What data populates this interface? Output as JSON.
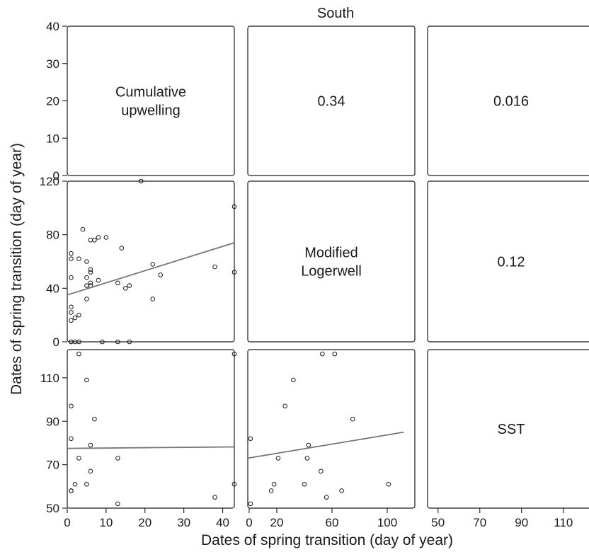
{
  "figure": {
    "title": "South",
    "xlabel": "Dates of spring transition (day of year)",
    "ylabel": "Dates of spring transition (day of year)"
  },
  "chart_data": [
    {
      "type": "text",
      "panel": "row1-col1",
      "lines": [
        "Cumulative",
        "upwelling"
      ],
      "ylim": [
        0,
        40
      ],
      "yticks": [
        0,
        10,
        20,
        30,
        40
      ]
    },
    {
      "type": "text",
      "panel": "row1-col2",
      "lines": [
        "0.34"
      ]
    },
    {
      "type": "text",
      "panel": "row1-col3",
      "lines": [
        "0.016"
      ]
    },
    {
      "type": "scatter",
      "panel": "row2-col1",
      "xlim": [
        0,
        43
      ],
      "ylim": [
        0,
        120
      ],
      "yticks": [
        0,
        40,
        80,
        120
      ],
      "x": [
        1,
        1,
        1,
        1,
        1,
        1,
        1,
        1,
        2,
        2,
        3,
        3,
        3,
        4,
        5,
        5,
        5,
        5,
        6,
        6,
        6,
        6,
        6,
        7,
        8,
        8,
        9,
        10,
        13,
        13,
        14,
        15,
        16,
        16,
        19,
        22,
        22,
        24,
        38,
        43,
        43
      ],
      "y": [
        0,
        0,
        16,
        22,
        26,
        48,
        62,
        66,
        0,
        18,
        0,
        20,
        62,
        84,
        32,
        42,
        48,
        60,
        42,
        44,
        52,
        54,
        76,
        76,
        46,
        78,
        0,
        78,
        0,
        44,
        70,
        40,
        0,
        42,
        120,
        32,
        58,
        50,
        56,
        52,
        101
      ],
      "fit_line": {
        "x": [
          0,
          43
        ],
        "y": [
          35,
          74
        ]
      }
    },
    {
      "type": "text",
      "panel": "row2-col2",
      "lines": [
        "Modified",
        "Logerwell"
      ]
    },
    {
      "type": "text",
      "panel": "row2-col3",
      "lines": [
        "0.12"
      ]
    },
    {
      "type": "scatter",
      "panel": "row3-col1",
      "xlim": [
        0,
        43
      ],
      "ylim": [
        50,
        123
      ],
      "xticks": [
        0,
        10,
        20,
        30,
        40
      ],
      "yticks": [
        50,
        70,
        90,
        110
      ],
      "x": [
        1,
        1,
        1,
        1,
        2,
        3,
        3,
        5,
        5,
        6,
        6,
        7,
        13,
        13,
        38,
        43,
        43
      ],
      "y": [
        58,
        58,
        82,
        97,
        61,
        73,
        121,
        61,
        109,
        67,
        79,
        91,
        52,
        73,
        55,
        61,
        121
      ],
      "fit_line": {
        "x": [
          0,
          43
        ],
        "y": [
          77.5,
          78.2
        ]
      }
    },
    {
      "type": "scatter",
      "panel": "row3-col2",
      "xlim": [
        -1,
        120
      ],
      "ylim": [
        50,
        123
      ],
      "xticks": [
        0,
        20,
        60,
        100
      ],
      "x": [
        1,
        1,
        16,
        18,
        21,
        26,
        32,
        40,
        42,
        43,
        52,
        53,
        56,
        62,
        67,
        75,
        101
      ],
      "y": [
        52,
        82,
        58,
        61,
        73,
        97,
        109,
        61,
        73,
        79,
        67,
        121,
        55,
        121,
        58,
        91,
        61
      ],
      "fit_line": {
        "x": [
          -1,
          112
        ],
        "y": [
          73,
          85
        ]
      }
    },
    {
      "type": "text",
      "panel": "row3-col3",
      "lines": [
        "SST"
      ],
      "xlim": [
        45,
        125
      ],
      "xticks": [
        50,
        70,
        90,
        110
      ]
    }
  ]
}
